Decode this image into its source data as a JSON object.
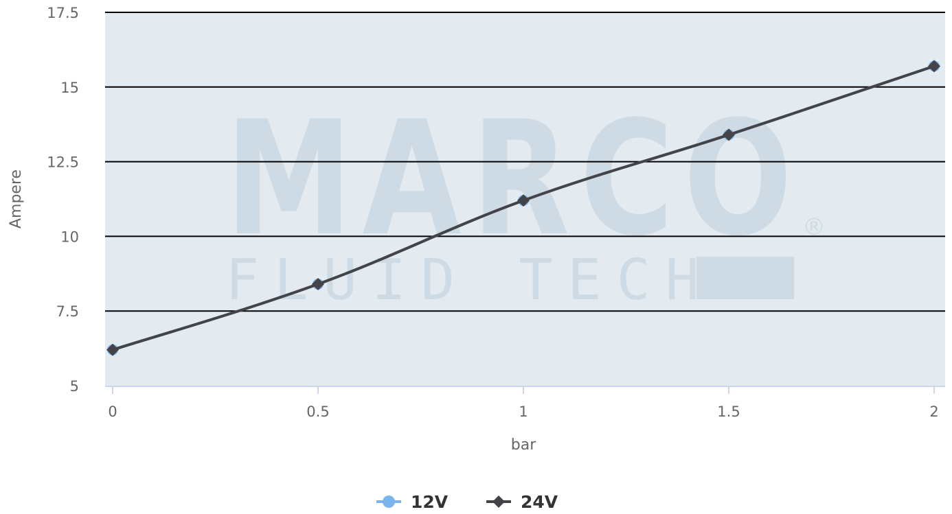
{
  "chart_data": {
    "type": "line",
    "title": "",
    "xlabel": "bar",
    "ylabel": "Ampere",
    "x": [
      0,
      0.5,
      1,
      1.5,
      2
    ],
    "x_tick_labels": [
      "0",
      "0.5",
      "1",
      "1.5",
      "2"
    ],
    "y_tick_labels": [
      "5",
      "7.5",
      "10",
      "12.5",
      "15",
      "17.5"
    ],
    "y_ticks": [
      5,
      7.5,
      10,
      12.5,
      15,
      17.5
    ],
    "xlim": [
      0,
      2
    ],
    "ylim": [
      5,
      17.5
    ],
    "grid": true,
    "legend_position": "bottom-center",
    "series": [
      {
        "name": "12V",
        "values": [
          6.2,
          8.4,
          11.2,
          13.4,
          15.7
        ],
        "color": "#7cb5ec",
        "marker": "circle"
      },
      {
        "name": "24V",
        "values": [
          6.2,
          8.4,
          11.2,
          13.4,
          15.7
        ],
        "color": "#434348",
        "marker": "diamond"
      }
    ]
  },
  "watermark": {
    "brand": "MARCO",
    "subtitle": "FLUID TECH",
    "registered": "®"
  },
  "colors": {
    "plot_background": "#e3ebf1",
    "gridline": "#000000",
    "axis_line": "#ccd6eb"
  }
}
